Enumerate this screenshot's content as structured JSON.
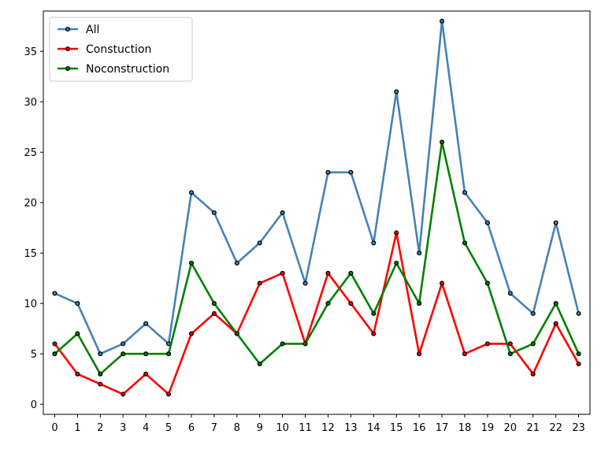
{
  "chart_data": {
    "type": "line",
    "title": "",
    "xlabel": "",
    "ylabel": "",
    "x": [
      0,
      1,
      2,
      3,
      4,
      5,
      6,
      7,
      8,
      9,
      10,
      11,
      12,
      13,
      14,
      15,
      16,
      17,
      18,
      19,
      20,
      21,
      22,
      23
    ],
    "xlim": [
      -0.5,
      23.5
    ],
    "ylim": [
      -1,
      39
    ],
    "yticks": [
      0,
      5,
      10,
      15,
      20,
      25,
      30,
      35
    ],
    "grid": false,
    "legend_position": "top-left",
    "marker_color": "#000000",
    "series": [
      {
        "name": "All",
        "color": "#4682b4",
        "values": [
          11,
          10,
          5,
          6,
          8,
          6,
          21,
          19,
          14,
          16,
          19,
          12,
          23,
          23,
          16,
          31,
          15,
          38,
          21,
          18,
          11,
          9,
          18,
          9
        ]
      },
      {
        "name": "Constuction",
        "color": "#ff0000",
        "values": [
          6,
          3,
          2,
          1,
          3,
          1,
          7,
          9,
          7,
          12,
          13,
          6,
          13,
          10,
          7,
          17,
          5,
          12,
          5,
          6,
          6,
          3,
          8,
          4
        ]
      },
      {
        "name": "Noconstruction",
        "color": "#008000",
        "values": [
          5,
          7,
          3,
          5,
          5,
          5,
          14,
          10,
          7,
          4,
          6,
          6,
          10,
          13,
          9,
          14,
          10,
          26,
          16,
          12,
          5,
          6,
          10,
          5
        ]
      }
    ]
  }
}
